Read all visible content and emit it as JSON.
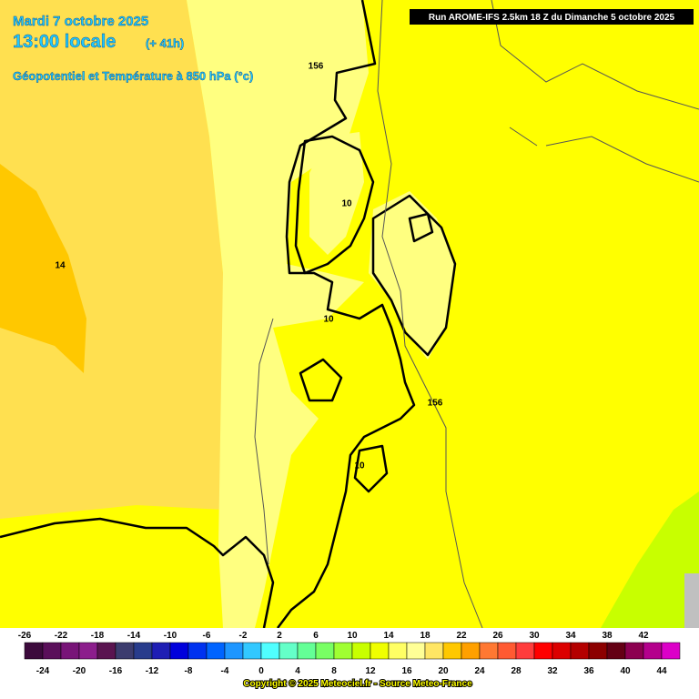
{
  "header": {
    "date": "Mardi 7 octobre 2025",
    "time": "13:00 locale",
    "lead": "(+ 41h)",
    "field": "Géopotentiel et Température à 850 hPa (°c)",
    "run": "Run AROME-IFS 2.5km 18 Z du Dimanche 5 octobre 2025"
  },
  "map_labels": [
    "156",
    "10",
    "14",
    "10",
    "156",
    "10"
  ],
  "legend": {
    "top_labels": [
      -26,
      -22,
      -18,
      -14,
      -10,
      -6,
      -2,
      2,
      6,
      10,
      14,
      18,
      22,
      26,
      30,
      34,
      38,
      42
    ],
    "bottom_labels": [
      -24,
      -20,
      -16,
      -12,
      -8,
      -4,
      0,
      4,
      8,
      12,
      16,
      20,
      24,
      28,
      32,
      36,
      40,
      44
    ],
    "colors": [
      "#3c0a3c",
      "#5a0f5a",
      "#781478",
      "#8c1e8c",
      "#5a1450",
      "#3c3c6e",
      "#283c8c",
      "#1e1eb4",
      "#0000dc",
      "#0032f0",
      "#0064ff",
      "#1e96ff",
      "#32c8ff",
      "#50ffff",
      "#64ffc8",
      "#64ff96",
      "#78ff64",
      "#a0ff32",
      "#c8ff00",
      "#f0ff00",
      "#ffff64",
      "#ffff96",
      "#ffe664",
      "#ffc800",
      "#ffa000",
      "#ff7832",
      "#ff5a32",
      "#ff3c3c",
      "#ff0000",
      "#dc0000",
      "#b40000",
      "#8c0000",
      "#640014",
      "#8c0050",
      "#b4008c",
      "#dc00c8"
    ]
  },
  "copyright": "Copyright © 2025 Meteociel.fr - Source Meteo-France"
}
